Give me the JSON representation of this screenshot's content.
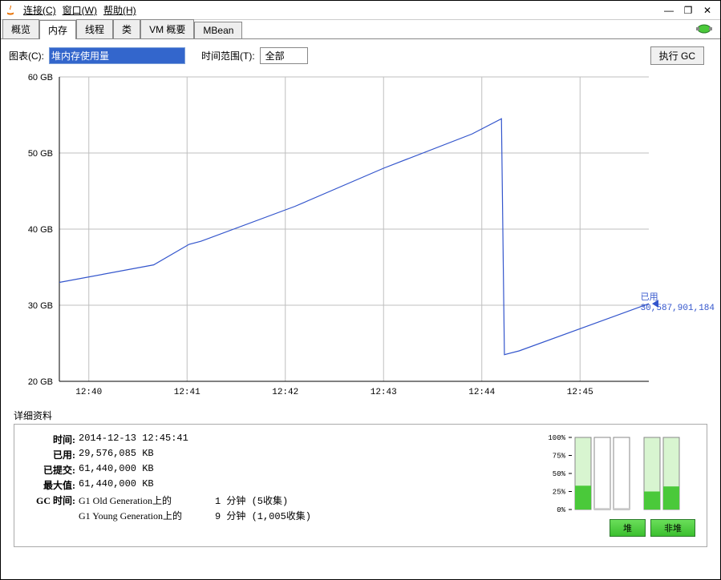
{
  "menubar": {
    "connect": "连接(C)",
    "window": "窗口(W)",
    "help": "帮助(H)"
  },
  "window_controls": {
    "minimize": "—",
    "maximize": "❐",
    "close": "✕"
  },
  "tabs": {
    "overview": "概览",
    "memory": "内存",
    "threads": "线程",
    "classes": "类",
    "vm_summary": "VM 概要",
    "mbean": "MBean"
  },
  "controls": {
    "chart_label": "图表(C):",
    "chart_value": "堆内存使用量",
    "range_label": "时间范围(T):",
    "range_value": "全部",
    "gc_button": "执行 GC"
  },
  "chart": {
    "type": "line",
    "ylabel_suffix": " GB",
    "ylim": [
      20,
      60
    ],
    "ytick_step": 10,
    "yticks": [
      20,
      30,
      40,
      50,
      60
    ],
    "xticks": [
      "12:40",
      "12:41",
      "12:42",
      "12:43",
      "12:44",
      "12:45"
    ],
    "line_color": "#3355cc",
    "grid_color": "#bfbfbf",
    "axis_color": "#000000",
    "background_color": "#ffffff",
    "label_fontsize": 11,
    "marker_label": "已用",
    "marker_value": "30,587,901,184",
    "data": [
      {
        "x": 0.0,
        "y": 33.0
      },
      {
        "x": 0.16,
        "y": 35.3
      },
      {
        "x": 0.22,
        "y": 38.0
      },
      {
        "x": 0.24,
        "y": 38.4
      },
      {
        "x": 0.4,
        "y": 43.0
      },
      {
        "x": 0.55,
        "y": 48.0
      },
      {
        "x": 0.7,
        "y": 52.5
      },
      {
        "x": 0.75,
        "y": 54.5
      },
      {
        "x": 0.755,
        "y": 23.5
      },
      {
        "x": 0.78,
        "y": 24.0
      },
      {
        "x": 1.0,
        "y": 30.2
      }
    ]
  },
  "details": {
    "section_title": "详细资料",
    "time_label": "时间:",
    "time_value": "2014-12-13 12:45:41",
    "used_label": "已用:",
    "used_value": "29,576,085 KB",
    "committed_label": "已提交:",
    "committed_value": "61,440,000 KB",
    "max_label": "最大值:",
    "max_value": "61,440,000 KB",
    "gc_label": "GC 时间:",
    "gc_old_name": "G1 Old Generation上的",
    "gc_old_value": "1 分钟 (5收集)",
    "gc_young_name": "G1 Young Generation上的",
    "gc_young_value": "9 分钟 (1,005收集)"
  },
  "mini": {
    "yticks": [
      "100%",
      "75%",
      "50%",
      "25%",
      "0%"
    ],
    "bars": [
      {
        "fill": 33,
        "color": "#4ac93a",
        "bg": "#d8f5d0"
      },
      {
        "fill": 2,
        "color": "#cccccc",
        "bg": "#ffffff"
      },
      {
        "fill": 2,
        "color": "#cccccc",
        "bg": "#ffffff"
      },
      {
        "fill": 25,
        "color": "#4ac93a",
        "bg": "#d8f5d0"
      },
      {
        "fill": 32,
        "color": "#4ac93a",
        "bg": "#d8f5d0"
      }
    ],
    "button1": "堆",
    "button2": "非堆"
  },
  "colors": {
    "selection_bg": "#3366cc",
    "green_btn_top": "#6ade5a",
    "green_btn_bot": "#3bbf2e"
  }
}
